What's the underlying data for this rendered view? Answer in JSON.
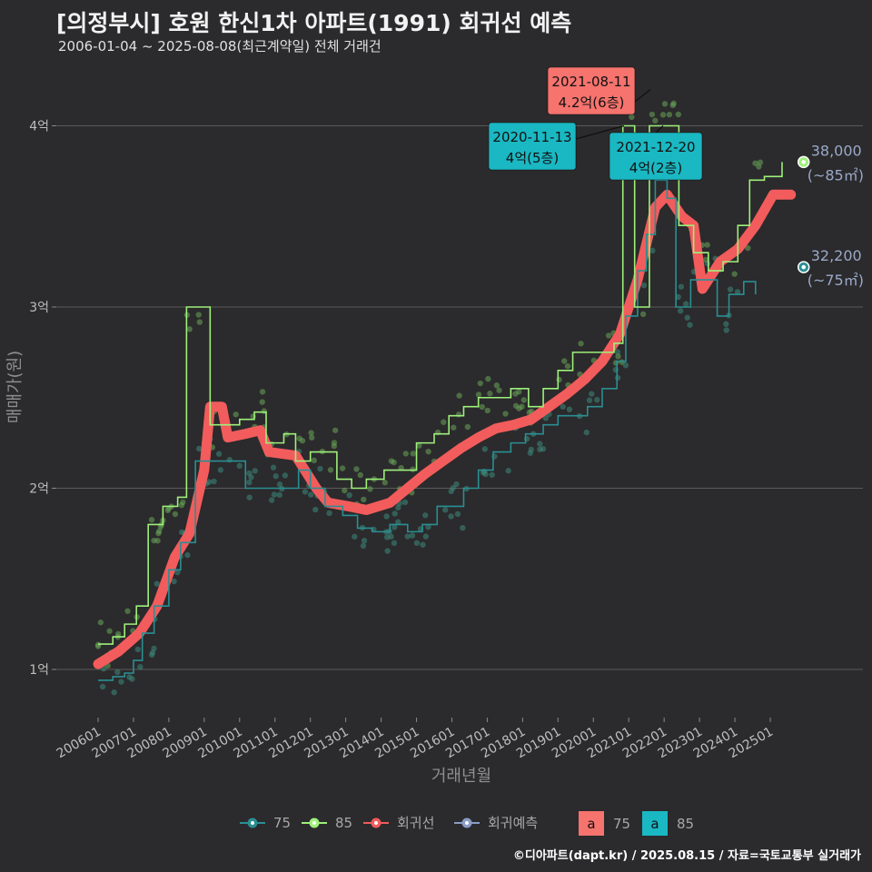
{
  "title": "[의정부시] 호원 한신1차 아파트(1991) 회귀선 예측",
  "subtitle": "2006-01-04 ~ 2025-08-08(최근계약일) 전체 거래건",
  "credit": "©디아파트(dapt.kr) / 2025.08.15 / 자료=국토교통부 실거래가",
  "colors": {
    "s75": "#2a8f93",
    "s85": "#9ef07a",
    "regression": "#f25c5c",
    "forecast": "#8a9dc6",
    "ann_red": "#f6736e",
    "ann_teal": "#1ab8c3",
    "grid": "#5a5a5a"
  },
  "chart_data": {
    "type": "line",
    "xlabel": "거래년월",
    "ylabel": "매매가(원)",
    "x_range": [
      "2006-01",
      "2025-12"
    ],
    "ylim": [
      0.8,
      4.45
    ],
    "y_unit": "억",
    "y_ticks": [
      {
        "value": 1,
        "label": "1억"
      },
      {
        "value": 2,
        "label": "2억"
      },
      {
        "value": 3,
        "label": "3억"
      },
      {
        "value": 4,
        "label": "4억"
      }
    ],
    "x_ticks": [
      "200601",
      "200701",
      "200801",
      "200901",
      "201001",
      "201101",
      "201201",
      "201301",
      "201401",
      "201501",
      "201601",
      "201701",
      "201801",
      "201901",
      "202001",
      "202101",
      "202201",
      "202301",
      "202401",
      "202501"
    ],
    "grid": true,
    "series": [
      {
        "name": "75",
        "points": [
          [
            "2006-01",
            0.94
          ],
          [
            "2006-06",
            0.96
          ],
          [
            "2006-10",
            0.98
          ],
          [
            "2007-01",
            1.05
          ],
          [
            "2007-04",
            1.2
          ],
          [
            "2007-08",
            1.35
          ],
          [
            "2008-01",
            1.55
          ],
          [
            "2008-05",
            1.7
          ],
          [
            "2008-10",
            2.15
          ],
          [
            "2009-02",
            2.15
          ],
          [
            "2010-03",
            2.0
          ],
          [
            "2010-06",
            2.0
          ],
          [
            "2011-04",
            2.0
          ],
          [
            "2011-09",
            2.1
          ],
          [
            "2012-01",
            2.0
          ],
          [
            "2012-06",
            1.9
          ],
          [
            "2012-12",
            1.85
          ],
          [
            "2013-05",
            1.78
          ],
          [
            "2013-10",
            1.76
          ],
          [
            "2014-04",
            1.8
          ],
          [
            "2014-10",
            1.76
          ],
          [
            "2015-03",
            1.8
          ],
          [
            "2015-08",
            1.9
          ],
          [
            "2016-01",
            1.9
          ],
          [
            "2016-05",
            2.0
          ],
          [
            "2016-10",
            2.1
          ],
          [
            "2017-03",
            2.2
          ],
          [
            "2017-09",
            2.25
          ],
          [
            "2018-02",
            2.3
          ],
          [
            "2018-08",
            2.35
          ],
          [
            "2019-01",
            2.4
          ],
          [
            "2019-06",
            2.4
          ],
          [
            "2019-11",
            2.45
          ],
          [
            "2020-04",
            2.55
          ],
          [
            "2020-09",
            2.7
          ],
          [
            "2020-12",
            2.95
          ],
          [
            "2021-04",
            3.2
          ],
          [
            "2021-07",
            3.4
          ],
          [
            "2021-10",
            3.7
          ],
          [
            "2022-02",
            3.6
          ],
          [
            "2022-05",
            3.0
          ],
          [
            "2022-10",
            3.15
          ],
          [
            "2023-03",
            3.15
          ],
          [
            "2023-07",
            2.95
          ],
          [
            "2023-11",
            3.07
          ],
          [
            "2024-04",
            3.14
          ],
          [
            "2024-08",
            3.07
          ]
        ]
      },
      {
        "name": "85",
        "points": [
          [
            "2006-01",
            1.14
          ],
          [
            "2006-06",
            1.18
          ],
          [
            "2006-10",
            1.25
          ],
          [
            "2007-02",
            1.35
          ],
          [
            "2007-06",
            1.8
          ],
          [
            "2007-11",
            1.9
          ],
          [
            "2008-04",
            1.95
          ],
          [
            "2008-07",
            3.0
          ],
          [
            "2009-01",
            3.0
          ],
          [
            "2009-03",
            2.35
          ],
          [
            "2009-08",
            2.35
          ],
          [
            "2010-01",
            2.38
          ],
          [
            "2010-06",
            2.42
          ],
          [
            "2010-10",
            2.25
          ],
          [
            "2011-04",
            2.3
          ],
          [
            "2011-08",
            2.15
          ],
          [
            "2012-01",
            2.2
          ],
          [
            "2012-07",
            2.2
          ],
          [
            "2012-10",
            2.05
          ],
          [
            "2013-03",
            2.0
          ],
          [
            "2013-08",
            2.05
          ],
          [
            "2014-02",
            2.1
          ],
          [
            "2014-07",
            2.1
          ],
          [
            "2015-01",
            2.25
          ],
          [
            "2015-07",
            2.3
          ],
          [
            "2015-12",
            2.4
          ],
          [
            "2016-05",
            2.45
          ],
          [
            "2016-10",
            2.5
          ],
          [
            "2017-03",
            2.5
          ],
          [
            "2017-09",
            2.55
          ],
          [
            "2018-03",
            2.45
          ],
          [
            "2018-08",
            2.55
          ],
          [
            "2019-01",
            2.65
          ],
          [
            "2019-06",
            2.75
          ],
          [
            "2019-11",
            2.75
          ],
          [
            "2020-04",
            2.75
          ],
          [
            "2020-08",
            2.8
          ],
          [
            "2020-11",
            4.0
          ],
          [
            "2021-03",
            3.0
          ],
          [
            "2021-08",
            4.0
          ],
          [
            "2022-01",
            4.0
          ],
          [
            "2022-06",
            3.45
          ],
          [
            "2022-11",
            3.3
          ],
          [
            "2023-04",
            3.2
          ],
          [
            "2023-09",
            3.25
          ],
          [
            "2024-02",
            3.45
          ],
          [
            "2024-06",
            3.7
          ],
          [
            "2024-11",
            3.72
          ],
          [
            "2025-05",
            3.8
          ]
        ]
      },
      {
        "name": "회귀선",
        "points": [
          [
            "2006-01",
            1.03
          ],
          [
            "2006-08",
            1.1
          ],
          [
            "2007-03",
            1.2
          ],
          [
            "2007-09",
            1.35
          ],
          [
            "2008-03",
            1.62
          ],
          [
            "2008-08",
            1.75
          ],
          [
            "2009-01",
            2.1
          ],
          [
            "2009-03",
            2.45
          ],
          [
            "2009-07",
            2.45
          ],
          [
            "2009-09",
            2.28
          ],
          [
            "2010-03",
            2.3
          ],
          [
            "2010-08",
            2.32
          ],
          [
            "2010-11",
            2.2
          ],
          [
            "2011-08",
            2.18
          ],
          [
            "2012-03",
            2.0
          ],
          [
            "2012-07",
            1.92
          ],
          [
            "2013-02",
            1.9
          ],
          [
            "2013-08",
            1.88
          ],
          [
            "2014-04",
            1.92
          ],
          [
            "2014-10",
            2.0
          ],
          [
            "2015-04",
            2.08
          ],
          [
            "2015-10",
            2.15
          ],
          [
            "2016-04",
            2.22
          ],
          [
            "2016-10",
            2.28
          ],
          [
            "2017-04",
            2.33
          ],
          [
            "2017-10",
            2.35
          ],
          [
            "2018-04",
            2.38
          ],
          [
            "2018-10",
            2.45
          ],
          [
            "2019-04",
            2.52
          ],
          [
            "2019-10",
            2.6
          ],
          [
            "2020-04",
            2.7
          ],
          [
            "2020-10",
            2.85
          ],
          [
            "2021-04",
            3.15
          ],
          [
            "2021-10",
            3.55
          ],
          [
            "2022-02",
            3.62
          ],
          [
            "2022-07",
            3.5
          ],
          [
            "2022-11",
            3.45
          ],
          [
            "2023-02",
            3.1
          ],
          [
            "2023-08",
            3.25
          ],
          [
            "2024-02",
            3.32
          ],
          [
            "2024-08",
            3.45
          ],
          [
            "2025-02",
            3.62
          ],
          [
            "2025-08",
            3.62
          ]
        ]
      },
      {
        "name": "회귀예측",
        "points": []
      }
    ],
    "end_labels": [
      {
        "series": "85",
        "date": "2025-08",
        "value": 3.8,
        "price": "38,000",
        "area": "(~85㎡)"
      },
      {
        "series": "75",
        "date": "2025-08",
        "value": 3.22,
        "price": "32,200",
        "area": "(~75㎡)"
      }
    ],
    "annotations": [
      {
        "date": "2021-08-11",
        "line1": "2021-08-11",
        "line2": "4.2억(6층)",
        "value": 4.2,
        "style": "red"
      },
      {
        "date": "2020-11-13",
        "line1": "2020-11-13",
        "line2": "4억(5층)",
        "value": 4.0,
        "style": "teal"
      },
      {
        "date": "2021-12-20",
        "line1": "2021-12-20",
        "line2": "4억(2층)",
        "value": 4.0,
        "style": "teal"
      }
    ],
    "legend": {
      "position": "bottom",
      "items": [
        {
          "label": "75",
          "color": "#2a8f93"
        },
        {
          "label": "85",
          "color": "#9ef07a"
        },
        {
          "label": "회귀선",
          "color": "#f25c5c"
        },
        {
          "label": "회귀예측",
          "color": "#8a9dc6"
        }
      ],
      "box_glyph": "a",
      "boxes": [
        {
          "label": "75",
          "color": "#f6736e"
        },
        {
          "label": "85",
          "color": "#1ab8c3"
        }
      ]
    }
  }
}
